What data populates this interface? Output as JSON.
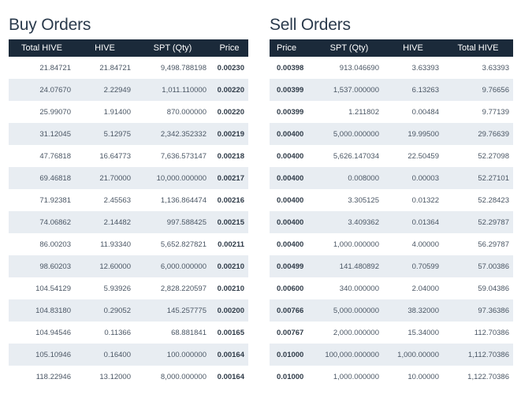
{
  "buy": {
    "title": "Buy Orders",
    "headers": [
      "Total HIVE",
      "HIVE",
      "SPT (Qty)",
      "Price"
    ],
    "rows": [
      [
        "21.84721",
        "21.84721",
        "9,498.788198",
        "0.00230"
      ],
      [
        "24.07670",
        "2.22949",
        "1,011.110000",
        "0.00220"
      ],
      [
        "25.99070",
        "1.91400",
        "870.000000",
        "0.00220"
      ],
      [
        "31.12045",
        "5.12975",
        "2,342.352332",
        "0.00219"
      ],
      [
        "47.76818",
        "16.64773",
        "7,636.573147",
        "0.00218"
      ],
      [
        "69.46818",
        "21.70000",
        "10,000.000000",
        "0.00217"
      ],
      [
        "71.92381",
        "2.45563",
        "1,136.864474",
        "0.00216"
      ],
      [
        "74.06862",
        "2.14482",
        "997.588425",
        "0.00215"
      ],
      [
        "86.00203",
        "11.93340",
        "5,652.827821",
        "0.00211"
      ],
      [
        "98.60203",
        "12.60000",
        "6,000.000000",
        "0.00210"
      ],
      [
        "104.54129",
        "5.93926",
        "2,828.220597",
        "0.00210"
      ],
      [
        "104.83180",
        "0.29052",
        "145.257775",
        "0.00200"
      ],
      [
        "104.94546",
        "0.11366",
        "68.881841",
        "0.00165"
      ],
      [
        "105.10946",
        "0.16400",
        "100.000000",
        "0.00164"
      ],
      [
        "118.22946",
        "13.12000",
        "8,000.000000",
        "0.00164"
      ]
    ]
  },
  "sell": {
    "title": "Sell Orders",
    "headers": [
      "Price",
      "SPT (Qty)",
      "HIVE",
      "Total HIVE"
    ],
    "rows": [
      [
        "0.00398",
        "913.046690",
        "3.63393",
        "3.63393"
      ],
      [
        "0.00399",
        "1,537.000000",
        "6.13263",
        "9.76656"
      ],
      [
        "0.00399",
        "1.211802",
        "0.00484",
        "9.77139"
      ],
      [
        "0.00400",
        "5,000.000000",
        "19.99500",
        "29.76639"
      ],
      [
        "0.00400",
        "5,626.147034",
        "22.50459",
        "52.27098"
      ],
      [
        "0.00400",
        "0.008000",
        "0.00003",
        "52.27101"
      ],
      [
        "0.00400",
        "3.305125",
        "0.01322",
        "52.28423"
      ],
      [
        "0.00400",
        "3.409362",
        "0.01364",
        "52.29787"
      ],
      [
        "0.00400",
        "1,000.000000",
        "4.00000",
        "56.29787"
      ],
      [
        "0.00499",
        "141.480892",
        "0.70599",
        "57.00386"
      ],
      [
        "0.00600",
        "340.000000",
        "2.04000",
        "59.04386"
      ],
      [
        "0.00766",
        "5,000.000000",
        "38.32000",
        "97.36386"
      ],
      [
        "0.00767",
        "2,000.000000",
        "15.34000",
        "112.70386"
      ],
      [
        "0.01000",
        "100,000.000000",
        "1,000.00000",
        "1,112.70386"
      ],
      [
        "0.01000",
        "1,000.000000",
        "10.00000",
        "1,122.70386"
      ]
    ]
  }
}
